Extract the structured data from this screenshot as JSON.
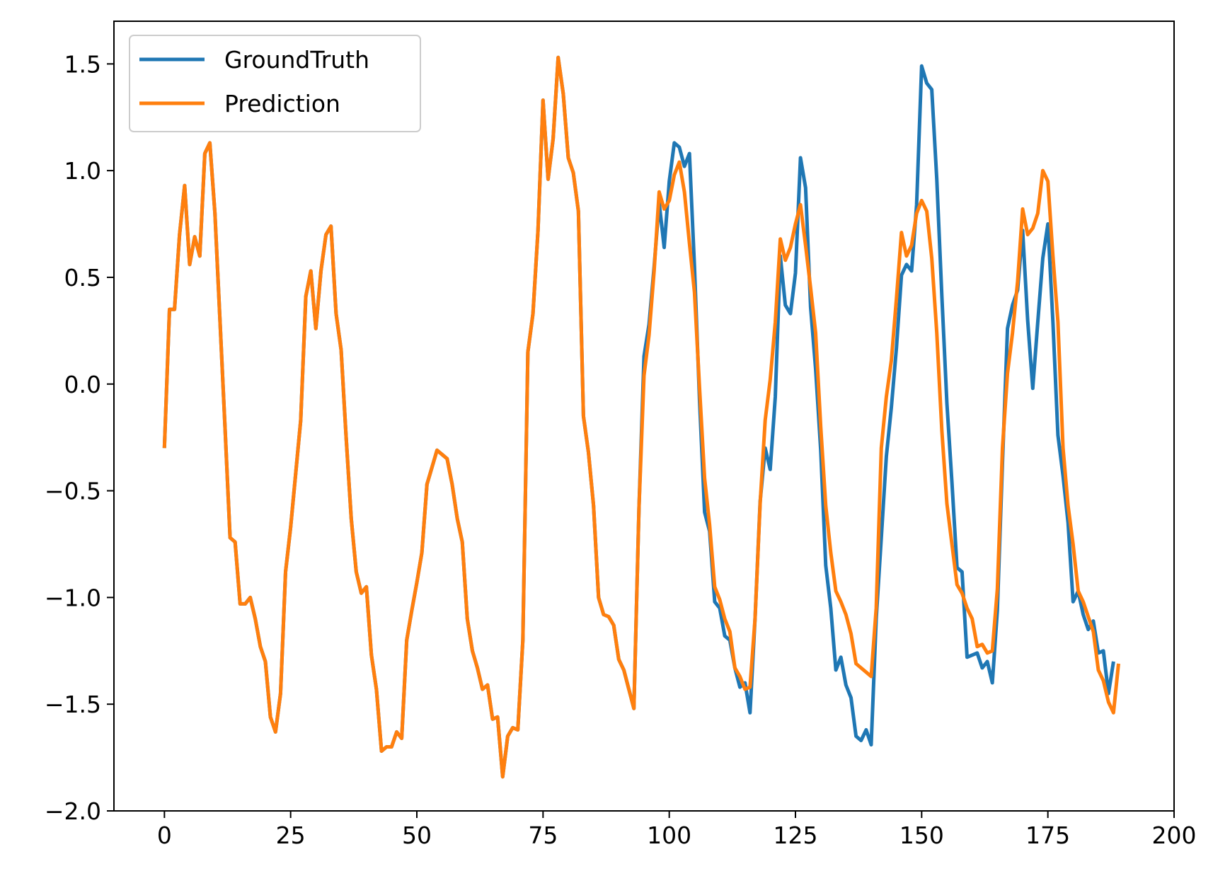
{
  "chart_data": {
    "type": "line",
    "title": "",
    "xlabel": "",
    "ylabel": "",
    "xlim": [
      -10,
      200
    ],
    "ylim": [
      -2.0,
      1.7
    ],
    "x_ticks": [
      0,
      25,
      50,
      75,
      100,
      125,
      150,
      175,
      200
    ],
    "x_tick_labels": [
      "0",
      "25",
      "50",
      "75",
      "100",
      "125",
      "150",
      "175",
      "200"
    ],
    "y_ticks": [
      1.5,
      1.0,
      0.5,
      0.0,
      -0.5,
      -1.0,
      -1.5,
      -2.0
    ],
    "y_tick_labels": [
      "1.5",
      "1.0",
      "0.5",
      "0.0",
      "−0.5",
      "−1.0",
      "−1.5",
      "−2.0"
    ],
    "grid": false,
    "legend_position": "upper-left",
    "x_start": 0,
    "series": [
      {
        "name": "GroundTruth",
        "color": "#1f77b4",
        "values": [
          -0.3,
          0.35,
          0.35,
          0.7,
          0.93,
          0.56,
          0.69,
          0.6,
          1.08,
          1.13,
          0.8,
          0.3,
          -0.2,
          -0.72,
          -0.74,
          -1.03,
          -1.03,
          -1.0,
          -1.1,
          -1.23,
          -1.3,
          -1.56,
          -1.63,
          -1.45,
          -0.88,
          -0.67,
          -0.42,
          -0.17,
          0.41,
          0.53,
          0.26,
          0.53,
          0.7,
          0.74,
          0.33,
          0.16,
          -0.25,
          -0.63,
          -0.88,
          -0.98,
          -0.95,
          -1.27,
          -1.43,
          -1.72,
          -1.7,
          -1.7,
          -1.63,
          -1.66,
          -1.2,
          -1.06,
          -0.93,
          -0.79,
          -0.47,
          -0.39,
          -0.31,
          -0.33,
          -0.35,
          -0.47,
          -0.63,
          -0.74,
          -1.1,
          -1.25,
          -1.33,
          -1.43,
          -1.41,
          -1.57,
          -1.56,
          -1.84,
          -1.65,
          -1.61,
          -1.62,
          -1.2,
          0.15,
          0.33,
          0.72,
          1.33,
          0.96,
          1.15,
          1.53,
          1.36,
          1.06,
          0.99,
          0.81,
          -0.15,
          -0.32,
          -0.57,
          -1.0,
          -1.08,
          -1.09,
          -1.13,
          -1.29,
          -1.34,
          -1.43,
          -1.52,
          -0.58,
          0.13,
          0.28,
          0.55,
          0.85,
          0.64,
          0.95,
          1.13,
          1.11,
          1.02,
          1.08,
          0.55,
          -0.08,
          -0.6,
          -0.69,
          -1.02,
          -1.05,
          -1.18,
          -1.2,
          -1.33,
          -1.42,
          -1.4,
          -1.54,
          -1.1,
          -0.55,
          -0.3,
          -0.4,
          -0.06,
          0.6,
          0.37,
          0.33,
          0.52,
          1.06,
          0.92,
          0.36,
          0.07,
          -0.31,
          -0.85,
          -1.05,
          -1.34,
          -1.28,
          -1.41,
          -1.47,
          -1.65,
          -1.67,
          -1.62,
          -1.69,
          -1.1,
          -0.72,
          -0.34,
          -0.11,
          0.17,
          0.51,
          0.56,
          0.53,
          0.84,
          1.49,
          1.41,
          1.38,
          0.96,
          0.41,
          -0.09,
          -0.46,
          -0.86,
          -0.88,
          -1.28,
          -1.27,
          -1.26,
          -1.33,
          -1.3,
          -1.4,
          -1.06,
          -0.37,
          0.26,
          0.37,
          0.44,
          0.72,
          0.3,
          -0.02,
          0.29,
          0.59,
          0.75,
          0.29,
          -0.24,
          -0.43,
          -0.65,
          -1.02,
          -0.97,
          -1.08,
          -1.15,
          -1.11,
          -1.26,
          -1.25,
          -1.45,
          -1.3
        ],
        "visible_tail_only": false
      },
      {
        "name": "Prediction",
        "color": "#ff7f0e",
        "values": [
          -0.3,
          0.35,
          0.35,
          0.7,
          0.93,
          0.56,
          0.69,
          0.6,
          1.08,
          1.13,
          0.8,
          0.3,
          -0.2,
          -0.72,
          -0.74,
          -1.03,
          -1.03,
          -1.0,
          -1.1,
          -1.23,
          -1.3,
          -1.56,
          -1.63,
          -1.45,
          -0.88,
          -0.67,
          -0.42,
          -0.17,
          0.41,
          0.53,
          0.26,
          0.53,
          0.7,
          0.74,
          0.33,
          0.16,
          -0.25,
          -0.63,
          -0.88,
          -0.98,
          -0.95,
          -1.27,
          -1.43,
          -1.72,
          -1.7,
          -1.7,
          -1.63,
          -1.66,
          -1.2,
          -1.06,
          -0.93,
          -0.79,
          -0.47,
          -0.39,
          -0.31,
          -0.33,
          -0.35,
          -0.47,
          -0.63,
          -0.74,
          -1.1,
          -1.25,
          -1.33,
          -1.43,
          -1.41,
          -1.57,
          -1.56,
          -1.84,
          -1.65,
          -1.61,
          -1.62,
          -1.2,
          0.15,
          0.33,
          0.72,
          1.33,
          0.96,
          1.15,
          1.53,
          1.36,
          1.06,
          0.99,
          0.81,
          -0.15,
          -0.32,
          -0.57,
          -1.0,
          -1.08,
          -1.09,
          -1.13,
          -1.29,
          -1.34,
          -1.43,
          -1.52,
          -0.58,
          0.04,
          0.23,
          0.53,
          0.9,
          0.82,
          0.86,
          0.98,
          1.04,
          0.9,
          0.66,
          0.43,
          -0.02,
          -0.44,
          -0.66,
          -0.95,
          -1.01,
          -1.1,
          -1.16,
          -1.33,
          -1.37,
          -1.43,
          -1.42,
          -1.1,
          -0.56,
          -0.17,
          0.02,
          0.29,
          0.68,
          0.58,
          0.64,
          0.75,
          0.84,
          0.65,
          0.45,
          0.24,
          -0.2,
          -0.57,
          -0.79,
          -0.97,
          -1.02,
          -1.08,
          -1.17,
          -1.31,
          -1.33,
          -1.35,
          -1.37,
          -1.05,
          -0.3,
          -0.06,
          0.11,
          0.4,
          0.71,
          0.6,
          0.65,
          0.8,
          0.86,
          0.81,
          0.59,
          0.24,
          -0.22,
          -0.56,
          -0.75,
          -0.94,
          -0.98,
          -1.05,
          -1.1,
          -1.23,
          -1.22,
          -1.26,
          -1.25,
          -0.96,
          -0.3,
          0.05,
          0.24,
          0.48,
          0.82,
          0.7,
          0.73,
          0.8,
          1.0,
          0.95,
          0.6,
          0.29,
          -0.3,
          -0.57,
          -0.75,
          -0.97,
          -1.02,
          -1.09,
          -1.16,
          -1.34,
          -1.39,
          -1.49,
          -1.54,
          -1.31
        ],
        "visible_tail_only": false
      }
    ]
  }
}
